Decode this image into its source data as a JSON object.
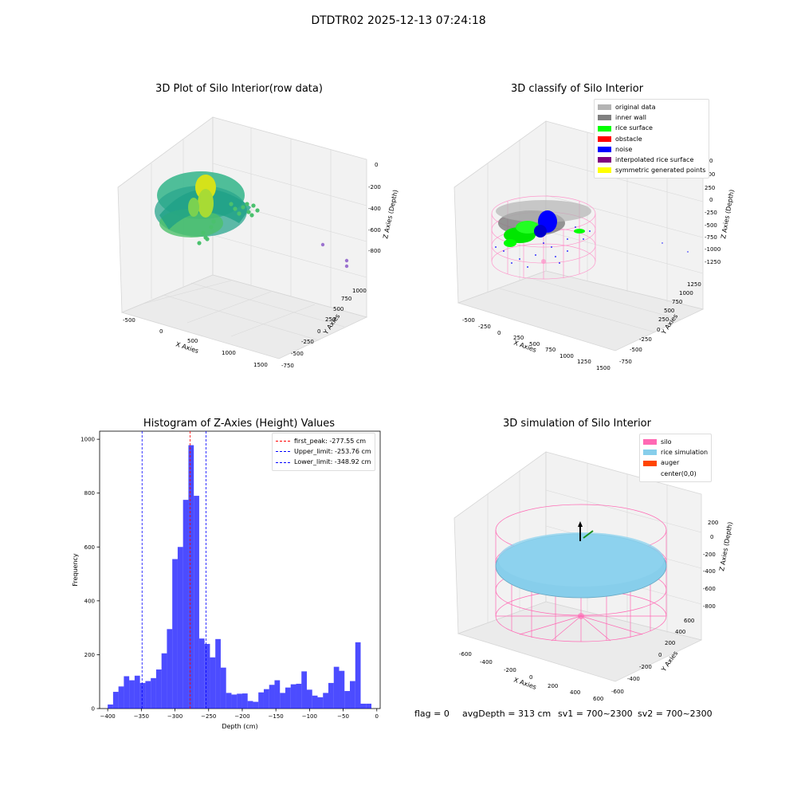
{
  "suptitle": "DTDTR02 2025-12-13 07:24:18",
  "footer": {
    "flag": "flag = 0",
    "avg": "avgDepth = 313 cm",
    "sv1": "sv1 = 700~2300",
    "sv2": "sv2 = 700~2300"
  },
  "chart_data": [
    {
      "type": "scatter",
      "title": "3D Plot of Silo Interior(row data)",
      "xlabel": "X Axies",
      "ylabel": "Y Axies",
      "zlabel": "Z Axies (Depth)",
      "x_ticks": [
        "-500",
        "0",
        "500",
        "1000",
        "1500"
      ],
      "y_ticks": [
        "-750",
        "-500",
        "-250",
        "0",
        "250",
        "500",
        "750",
        "1000"
      ],
      "z_ticks": [
        "0",
        "-200",
        "-400",
        "-600",
        "-800"
      ],
      "grid": true
    },
    {
      "type": "scatter",
      "title": "3D classify of Silo Interior",
      "xlabel": "X Axies",
      "ylabel": "Y Axies",
      "zlabel": "Z Axies (Depth)",
      "x_ticks": [
        "-500",
        "-250",
        "0",
        "250",
        "500",
        "750",
        "1000",
        "1250",
        "1500"
      ],
      "y_ticks": [
        "-750",
        "-500",
        "-250",
        "0",
        "250",
        "500",
        "750",
        "1000",
        "1250"
      ],
      "z_ticks": [
        "500",
        "250",
        "0",
        "-250",
        "-500",
        "-750",
        "-1000",
        "-1250"
      ],
      "z_tick_partial": "0",
      "legend": [
        {
          "label": "original data",
          "color": "#b3b3b3"
        },
        {
          "label": "inner wall",
          "color": "#808080"
        },
        {
          "label": "rice surface",
          "color": "#00ff00"
        },
        {
          "label": "obstacle",
          "color": "#ff0000"
        },
        {
          "label": "noise",
          "color": "#0000ff"
        },
        {
          "label": "interpolated rice surface",
          "color": "#800080"
        },
        {
          "label": "symmetric generated points",
          "color": "#ffff00"
        }
      ],
      "legend_position": "top-right",
      "grid": true
    },
    {
      "type": "bar",
      "title": "Histogram of Z-Axies (Height) Values",
      "xlabel": "Depth (cm)",
      "ylabel": "Frequency",
      "xlim": [
        -412,
        5
      ],
      "ylim": [
        0,
        1030
      ],
      "x_ticks": [
        -400,
        -350,
        -300,
        -250,
        -200,
        -150,
        -100,
        -50,
        0
      ],
      "y_ticks": [
        0,
        200,
        400,
        600,
        800,
        1000
      ],
      "bin_start": -400,
      "bin_width": 8,
      "values": [
        15,
        62,
        82,
        120,
        105,
        122,
        95,
        102,
        113,
        145,
        205,
        295,
        555,
        600,
        775,
        978,
        790,
        260,
        240,
        190,
        258,
        152,
        58,
        52,
        55,
        56,
        28,
        25,
        60,
        72,
        88,
        105,
        58,
        78,
        90,
        92,
        138,
        70,
        48,
        42,
        58,
        95,
        155,
        140,
        65,
        102,
        246,
        18,
        18
      ],
      "bar_color": "#0000ff",
      "lines": [
        {
          "label": "first_peak: -277.55 cm",
          "x": -277.55,
          "color": "#ff0000"
        },
        {
          "label": "Upper_limit: -253.76 cm",
          "x": -253.76,
          "color": "#0000ff"
        },
        {
          "label": "Lower_limit: -348.92 cm",
          "x": -348.92,
          "color": "#0000ff"
        }
      ],
      "legend_position": "top-right"
    },
    {
      "type": "scatter",
      "title": "3D simulation of Silo Interior",
      "xlabel": "X Axies",
      "ylabel": "Y Axies",
      "zlabel": "Z Axies (Depth)",
      "x_ticks": [
        "-600",
        "-400",
        "-200",
        "0",
        "200",
        "400",
        "600"
      ],
      "y_ticks": [
        "-600",
        "-400",
        "-200",
        "0",
        "200",
        "400",
        "600"
      ],
      "z_ticks": [
        "200",
        "0",
        "-200",
        "-400",
        "-600",
        "-800"
      ],
      "legend": [
        {
          "label": "silo",
          "color": "#ff69b4"
        },
        {
          "label": "rice simulation",
          "color": "#87ceeb"
        },
        {
          "label": "auger",
          "color": "#ff4500"
        },
        {
          "label": "center(0,0)",
          "color": "#ffffff"
        }
      ],
      "legend_position": "top-right",
      "grid": true
    }
  ]
}
